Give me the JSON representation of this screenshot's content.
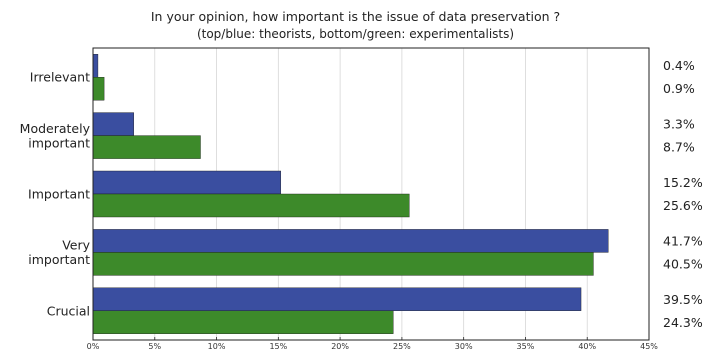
{
  "chart_data": {
    "type": "bar",
    "orientation": "horizontal",
    "title": "In your opinion, how important is the issue of data preservation ?",
    "subtitle": "(top/blue: theorists, bottom/green: experimentalists)",
    "categories": [
      "Irrelevant",
      "Moderately important",
      "Important",
      "Very important",
      "Crucial"
    ],
    "category_labels": [
      [
        "Irrelevant"
      ],
      [
        "Moderately",
        "important"
      ],
      [
        "Important"
      ],
      [
        "Very",
        "important"
      ],
      [
        "Crucial"
      ]
    ],
    "series": [
      {
        "values": [
          0.4,
          3.3,
          15.2,
          41.7,
          39.5
        ],
        "color": "#3a4ea0"
      },
      {
        "values": [
          0.9,
          8.7,
          25.6,
          40.5,
          24.3
        ],
        "color": "#3d8a2a"
      }
    ],
    "value_labels": [
      [
        "0.4%",
        "3.3%",
        "15.2%",
        "41.7%",
        "39.5%"
      ],
      [
        "0.9%",
        "8.7%",
        "25.6%",
        "40.5%",
        "24.3%"
      ]
    ],
    "xlim": [
      0,
      45
    ],
    "xticks": [
      0,
      5,
      10,
      15,
      20,
      25,
      30,
      35,
      40,
      45
    ],
    "xtick_labels": [
      "0%",
      "5%",
      "10%",
      "15%",
      "20%",
      "25%",
      "30%",
      "35%",
      "40%",
      "45%"
    ],
    "grid": "vertical, light"
  }
}
